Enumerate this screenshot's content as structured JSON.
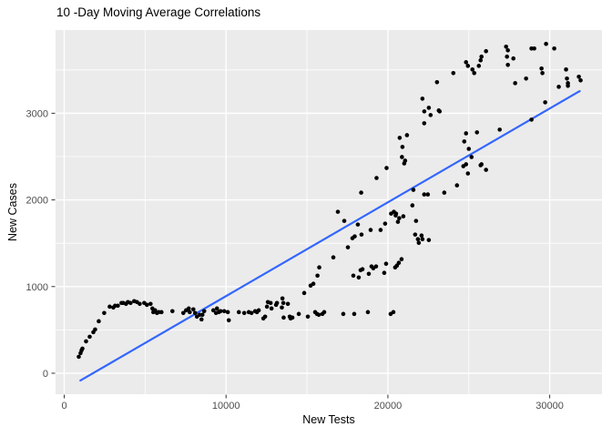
{
  "chart_data": {
    "type": "scatter",
    "title": "10 -Day Moving Average Correlations",
    "xlabel": "New Tests",
    "ylabel": "New Cases",
    "legend": "none",
    "grid": true,
    "x_ticks": [
      0,
      10000,
      20000,
      30000
    ],
    "x_tick_labels": [
      "0",
      "10000",
      "20000",
      "30000"
    ],
    "x_minor_ticks": [
      5000,
      15000,
      25000
    ],
    "y_ticks": [
      0,
      1000,
      2000,
      3000
    ],
    "y_tick_labels": [
      "0",
      "1000",
      "2000",
      "3000"
    ],
    "y_minor_ticks": [
      500,
      1500,
      2500,
      3500
    ],
    "x_range": [
      -535,
      33230
    ],
    "y_range": [
      -242,
      3960
    ],
    "colors": {
      "panel_bg": "#EBEBEB",
      "page_bg": "#FFFFFF",
      "grid": "#FFFFFF",
      "point": "#000000",
      "trend_line": "#3366FF",
      "tick_mark": "#333333",
      "tick_label": "#4D4D4D",
      "title_text": "#000000"
    },
    "point_radius": 2.3,
    "trend_line": {
      "x1": 1000,
      "y1": -84,
      "x2": 31850,
      "y2": 3255,
      "width": 2.2
    },
    "points": [
      [
        900,
        190
      ],
      [
        1010,
        232
      ],
      [
        1070,
        263
      ],
      [
        1125,
        284
      ],
      [
        1350,
        368
      ],
      [
        1575,
        421
      ],
      [
        1800,
        474
      ],
      [
        1910,
        505
      ],
      [
        2135,
        600
      ],
      [
        2470,
        695
      ],
      [
        2810,
        768
      ],
      [
        3035,
        758
      ],
      [
        3145,
        779
      ],
      [
        3315,
        779
      ],
      [
        3540,
        811
      ],
      [
        3650,
        811
      ],
      [
        3820,
        800
      ],
      [
        3935,
        821
      ],
      [
        4100,
        811
      ],
      [
        4325,
        832
      ],
      [
        4495,
        821
      ],
      [
        4665,
        800
      ],
      [
        4945,
        811
      ],
      [
        5110,
        789
      ],
      [
        5335,
        800
      ],
      [
        5450,
        747
      ],
      [
        5505,
        705
      ],
      [
        5620,
        726
      ],
      [
        5730,
        695
      ],
      [
        5845,
        705
      ],
      [
        6010,
        705
      ],
      [
        6685,
        716
      ],
      [
        7360,
        695
      ],
      [
        7530,
        726
      ],
      [
        7695,
        747
      ],
      [
        7755,
        705
      ],
      [
        7980,
        737
      ],
      [
        8090,
        695
      ],
      [
        8200,
        653
      ],
      [
        8370,
        674
      ],
      [
        8485,
        621
      ],
      [
        8540,
        674
      ],
      [
        8650,
        716
      ],
      [
        9215,
        726
      ],
      [
        9380,
        695
      ],
      [
        9440,
        747
      ],
      [
        9550,
        705
      ],
      [
        9665,
        716
      ],
      [
        9890,
        716
      ],
      [
        10110,
        705
      ],
      [
        10170,
        611
      ],
      [
        10790,
        705
      ],
      [
        11125,
        695
      ],
      [
        11405,
        705
      ],
      [
        11575,
        695
      ],
      [
        11800,
        716
      ],
      [
        11910,
        705
      ],
      [
        12020,
        726
      ],
      [
        12305,
        632
      ],
      [
        12415,
        653
      ],
      [
        12530,
        768
      ],
      [
        12585,
        821
      ],
      [
        12755,
        811
      ],
      [
        12810,
        747
      ],
      [
        13090,
        789
      ],
      [
        13145,
        811
      ],
      [
        13485,
        863
      ],
      [
        13540,
        811
      ],
      [
        13450,
        758
      ],
      [
        13560,
        642
      ],
      [
        13820,
        800
      ],
      [
        13935,
        653
      ],
      [
        13990,
        632
      ],
      [
        14100,
        642
      ],
      [
        14495,
        684
      ],
      [
        15055,
        653
      ],
      [
        15505,
        705
      ],
      [
        15620,
        684
      ],
      [
        15730,
        674
      ],
      [
        15955,
        684
      ],
      [
        16065,
        705
      ],
      [
        17245,
        684
      ],
      [
        17920,
        684
      ],
      [
        18765,
        705
      ],
      [
        20170,
        684
      ],
      [
        20340,
        705
      ],
      [
        14830,
        926
      ],
      [
        15225,
        1011
      ],
      [
        15395,
        1032
      ],
      [
        15650,
        1126
      ],
      [
        15760,
        1221
      ],
      [
        16630,
        1337
      ],
      [
        17865,
        1126
      ],
      [
        18200,
        1105
      ],
      [
        18315,
        1189
      ],
      [
        18430,
        1200
      ],
      [
        18820,
        1147
      ],
      [
        18990,
        1232
      ],
      [
        19100,
        1211
      ],
      [
        19270,
        1232
      ],
      [
        19775,
        1158
      ],
      [
        19890,
        1263
      ],
      [
        20450,
        1221
      ],
      [
        20560,
        1242
      ],
      [
        20675,
        1274
      ],
      [
        20845,
        1316
      ],
      [
        16910,
        1863
      ],
      [
        17305,
        1758
      ],
      [
        17530,
        1453
      ],
      [
        17810,
        1558
      ],
      [
        17950,
        1579
      ],
      [
        18145,
        1716
      ],
      [
        18350,
        2084
      ],
      [
        18370,
        1600
      ],
      [
        18935,
        1653
      ],
      [
        19300,
        2253
      ],
      [
        19550,
        1653
      ],
      [
        19830,
        1726
      ],
      [
        19920,
        2368
      ],
      [
        20200,
        1842
      ],
      [
        20370,
        1863
      ],
      [
        20480,
        1821
      ],
      [
        20505,
        1842
      ],
      [
        20620,
        1747
      ],
      [
        20700,
        1789
      ],
      [
        20730,
        2716
      ],
      [
        20870,
        2495
      ],
      [
        20900,
        2611
      ],
      [
        20955,
        1811
      ],
      [
        21010,
        2421
      ],
      [
        21065,
        2453
      ],
      [
        21180,
        2747
      ],
      [
        21515,
        1937
      ],
      [
        21575,
        2116
      ],
      [
        21685,
        1600
      ],
      [
        21740,
        1758
      ],
      [
        21855,
        1547
      ],
      [
        21910,
        1505
      ],
      [
        22080,
        1589
      ],
      [
        22135,
        1547
      ],
      [
        22530,
        1537
      ],
      [
        22245,
        2063
      ],
      [
        22470,
        2063
      ],
      [
        23485,
        2084
      ],
      [
        24270,
        2168
      ],
      [
        24665,
        2389
      ],
      [
        24830,
        2411
      ],
      [
        24945,
        2305
      ],
      [
        25170,
        2495
      ],
      [
        25730,
        2400
      ],
      [
        25785,
        2411
      ],
      [
        26065,
        2347
      ],
      [
        24720,
        2674
      ],
      [
        24830,
        2768
      ],
      [
        25000,
        2589
      ],
      [
        25505,
        2779
      ],
      [
        26910,
        2811
      ],
      [
        28875,
        2926
      ],
      [
        22245,
        2884
      ],
      [
        22250,
        3021
      ],
      [
        23200,
        3021
      ],
      [
        22135,
        3168
      ],
      [
        22530,
        3063
      ],
      [
        22640,
        2979
      ],
      [
        23145,
        3032
      ],
      [
        23035,
        3358
      ],
      [
        24045,
        3463
      ],
      [
        24830,
        3589
      ],
      [
        24945,
        3547
      ],
      [
        25225,
        3505
      ],
      [
        25335,
        3463
      ],
      [
        25620,
        3547
      ],
      [
        25730,
        3611
      ],
      [
        25785,
        3653
      ],
      [
        26065,
        3716
      ],
      [
        27305,
        3768
      ],
      [
        27415,
        3726
      ],
      [
        27360,
        3653
      ],
      [
        27415,
        3558
      ],
      [
        27755,
        3632
      ],
      [
        27865,
        3347
      ],
      [
        28540,
        3400
      ],
      [
        28875,
        3747
      ],
      [
        29045,
        3747
      ],
      [
        29495,
        3516
      ],
      [
        29550,
        3463
      ],
      [
        29775,
        3800
      ],
      [
        30280,
        3747
      ],
      [
        29720,
        3126
      ],
      [
        30560,
        3305
      ],
      [
        31010,
        3505
      ],
      [
        31065,
        3400
      ],
      [
        31125,
        3347
      ],
      [
        31125,
        3316
      ],
      [
        31800,
        3421
      ],
      [
        31910,
        3379
      ]
    ]
  }
}
